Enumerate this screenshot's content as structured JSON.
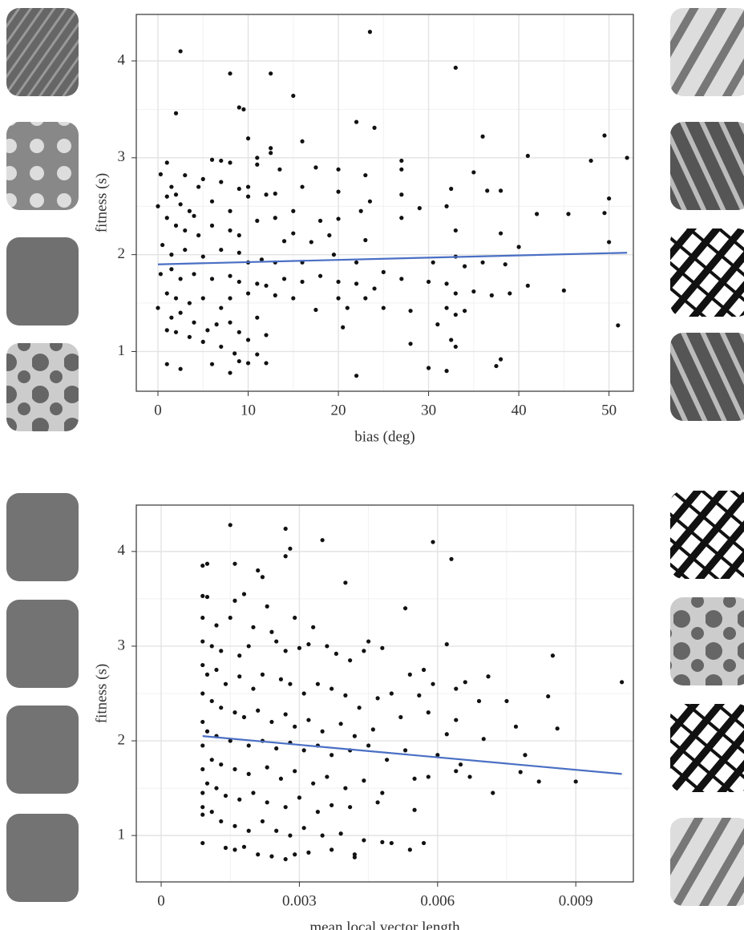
{
  "chart_data": [
    {
      "type": "scatter",
      "x_label": "bias (deg)",
      "y_label": "fitness (s)",
      "color": "#111111",
      "grid": true,
      "xlim": [
        -2.4,
        52.7
      ],
      "ylim": [
        0.59,
        4.48
      ],
      "xticks": [
        0,
        10,
        20,
        30,
        40,
        50
      ],
      "yticks": [
        1,
        2,
        3,
        4
      ],
      "trend": {
        "color": "#4a6fc4",
        "x": [
          0,
          52
        ],
        "y": [
          1.9,
          2.02
        ]
      },
      "x": [
        2.5,
        23.5,
        33,
        8,
        12.5,
        9,
        9.5,
        15,
        2,
        22,
        24,
        36,
        49.5,
        10,
        16,
        12.5,
        12.5,
        41,
        52,
        48,
        27,
        1,
        6,
        7,
        8,
        11,
        11,
        13.5,
        17.5,
        20,
        23,
        27,
        35,
        0.3,
        3,
        5,
        1.5,
        4.5,
        7,
        9,
        10,
        13,
        12,
        16,
        20,
        23.5,
        27,
        32.5,
        36.5,
        38,
        0,
        1,
        2,
        2.5,
        3.5,
        4,
        6,
        8,
        10,
        13,
        15,
        18,
        20,
        22.5,
        27,
        29,
        32,
        42,
        45.5,
        49.5,
        50,
        1,
        2,
        3,
        4.5,
        6,
        8,
        9,
        11,
        14,
        15,
        17,
        19,
        23,
        33,
        38,
        40,
        50,
        0.5,
        1.5,
        3,
        5,
        7,
        9,
        10,
        11.5,
        13,
        16,
        19.5,
        22,
        25,
        30.5,
        33,
        34,
        36,
        38.5,
        0.3,
        1.5,
        2.5,
        4,
        6,
        8,
        9,
        11,
        12,
        14,
        16,
        18,
        20,
        22,
        24,
        27,
        30,
        32,
        33,
        35,
        37,
        39,
        41,
        45,
        1,
        2,
        3.5,
        5,
        7,
        8,
        10,
        13,
        15,
        17.5,
        20,
        21,
        23,
        25,
        28,
        32,
        34,
        0,
        1.5,
        2.5,
        4,
        5.5,
        6.5,
        8,
        9,
        11,
        12,
        20.5,
        31,
        33,
        51,
        1,
        2,
        3.5,
        5,
        7,
        8.5,
        10,
        11,
        12,
        28,
        32.5,
        33,
        38,
        1,
        2.5,
        6,
        8,
        9,
        10,
        22,
        30,
        32,
        37.5
      ],
      "y": [
        4.1,
        4.3,
        3.93,
        3.87,
        3.87,
        3.52,
        3.5,
        3.64,
        3.46,
        3.37,
        3.31,
        3.22,
        3.23,
        3.2,
        3.17,
        3.1,
        3.05,
        3.02,
        3.0,
        2.97,
        2.97,
        2.95,
        2.98,
        2.97,
        2.95,
        3.0,
        2.93,
        2.88,
        2.9,
        2.88,
        2.82,
        2.88,
        2.85,
        2.83,
        2.82,
        2.78,
        2.7,
        2.7,
        2.75,
        2.68,
        2.7,
        2.63,
        2.62,
        2.7,
        2.65,
        2.55,
        2.62,
        2.68,
        2.66,
        2.66,
        2.5,
        2.6,
        2.62,
        2.52,
        2.45,
        2.4,
        2.55,
        2.45,
        2.6,
        2.38,
        2.45,
        2.35,
        2.37,
        2.45,
        2.38,
        2.48,
        2.5,
        2.42,
        2.42,
        2.43,
        2.58,
        2.38,
        2.3,
        2.25,
        2.2,
        2.3,
        2.25,
        2.2,
        2.35,
        2.14,
        2.22,
        2.13,
        2.2,
        2.15,
        2.25,
        2.22,
        2.08,
        2.13,
        2.1,
        2.0,
        2.05,
        1.98,
        2.05,
        2.02,
        1.92,
        1.95,
        1.92,
        1.92,
        2.0,
        1.92,
        1.82,
        1.92,
        1.98,
        1.88,
        1.92,
        1.9,
        1.8,
        1.85,
        1.75,
        1.8,
        1.75,
        1.78,
        1.72,
        1.7,
        1.68,
        1.75,
        1.72,
        1.78,
        1.72,
        1.7,
        1.65,
        1.75,
        1.72,
        1.7,
        1.6,
        1.62,
        1.58,
        1.6,
        1.68,
        1.63,
        1.6,
        1.55,
        1.5,
        1.55,
        1.45,
        1.55,
        1.6,
        1.58,
        1.55,
        1.43,
        1.55,
        1.45,
        1.55,
        1.45,
        1.42,
        1.45,
        1.42,
        1.45,
        1.35,
        1.4,
        1.3,
        1.22,
        1.28,
        1.3,
        1.2,
        1.35,
        1.17,
        1.25,
        1.28,
        1.38,
        1.27,
        1.22,
        1.2,
        1.15,
        1.1,
        1.05,
        0.98,
        1.12,
        0.97,
        0.88,
        1.08,
        1.12,
        1.05,
        0.92,
        0.87,
        0.82,
        0.87,
        0.78,
        0.9,
        0.88,
        0.75,
        0.83,
        0.8,
        0.85
      ]
    },
    {
      "type": "scatter",
      "x_label": "mean local vector length",
      "y_label": "fitness (s)",
      "color": "#111111",
      "grid": true,
      "xlim": [
        -0.00054,
        0.01025
      ],
      "ylim": [
        0.51,
        4.49
      ],
      "xticks": [
        0,
        0.003,
        0.006,
        0.009
      ],
      "yticks": [
        1,
        2,
        3,
        4
      ],
      "trend": {
        "color": "#4a6fc4",
        "x": [
          0.0009,
          0.01
        ],
        "y": [
          2.05,
          1.65
        ]
      },
      "x": [
        0.0015,
        0.0027,
        0.0028,
        0.0027,
        0.0035,
        0.0059,
        0.0063,
        0.0009,
        0.001,
        0.0016,
        0.0021,
        0.0022,
        0.004,
        0.0009,
        0.001,
        0.0016,
        0.0018,
        0.0023,
        0.0053,
        0.0009,
        0.0012,
        0.0015,
        0.002,
        0.0024,
        0.0029,
        0.0033,
        0.0036,
        0.0045,
        0.0048,
        0.0062,
        0.0085,
        0.01,
        0.0009,
        0.0011,
        0.0013,
        0.0017,
        0.0019,
        0.0025,
        0.0027,
        0.003,
        0.0032,
        0.0038,
        0.0041,
        0.0044,
        0.0054,
        0.0057,
        0.0066,
        0.0071,
        0.0075,
        0.0084,
        0.0009,
        0.001,
        0.0012,
        0.0014,
        0.0017,
        0.002,
        0.0022,
        0.0026,
        0.0028,
        0.0031,
        0.0034,
        0.0037,
        0.004,
        0.0043,
        0.0047,
        0.005,
        0.0056,
        0.0059,
        0.0064,
        0.0069,
        0.0077,
        0.0086,
        0.0009,
        0.0011,
        0.0013,
        0.0016,
        0.0018,
        0.0021,
        0.0024,
        0.0027,
        0.0029,
        0.0032,
        0.0035,
        0.0039,
        0.0042,
        0.0046,
        0.0052,
        0.0058,
        0.0062,
        0.0064,
        0.007,
        0.0009,
        0.001,
        0.0012,
        0.0015,
        0.0019,
        0.0022,
        0.0025,
        0.0028,
        0.0031,
        0.0034,
        0.0037,
        0.0041,
        0.0045,
        0.0049,
        0.0053,
        0.006,
        0.0065,
        0.0079,
        0.0009,
        0.0011,
        0.0013,
        0.0016,
        0.0019,
        0.0023,
        0.0026,
        0.0029,
        0.0033,
        0.0036,
        0.004,
        0.0044,
        0.0048,
        0.0055,
        0.0058,
        0.0064,
        0.0067,
        0.0072,
        0.0078,
        0.0082,
        0.009,
        0.0009,
        0.001,
        0.0012,
        0.0014,
        0.0017,
        0.002,
        0.0023,
        0.0027,
        0.003,
        0.0034,
        0.0037,
        0.0041,
        0.0047,
        0.0055,
        0.0009,
        0.0009,
        0.0009,
        0.0011,
        0.0013,
        0.0016,
        0.0019,
        0.0022,
        0.0025,
        0.0028,
        0.0031,
        0.0035,
        0.0039,
        0.0044,
        0.0009,
        0.0014,
        0.0016,
        0.0018,
        0.0021,
        0.0024,
        0.0027,
        0.0029,
        0.0032,
        0.0037,
        0.0042,
        0.0042,
        0.0048,
        0.005,
        0.0054,
        0.0057
      ],
      "y": [
        4.28,
        4.24,
        4.03,
        3.95,
        4.12,
        4.1,
        3.92,
        3.85,
        3.87,
        3.87,
        3.8,
        3.73,
        3.67,
        3.53,
        3.52,
        3.48,
        3.55,
        3.42,
        3.4,
        3.3,
        3.22,
        3.3,
        3.2,
        3.15,
        3.3,
        3.2,
        3.0,
        3.05,
        2.98,
        3.02,
        2.9,
        2.62,
        3.05,
        3.0,
        2.95,
        2.9,
        3.0,
        3.05,
        2.95,
        2.98,
        3.02,
        2.92,
        2.85,
        2.95,
        2.7,
        2.75,
        2.62,
        2.68,
        2.42,
        2.47,
        2.8,
        2.7,
        2.75,
        2.6,
        2.68,
        2.55,
        2.7,
        2.65,
        2.6,
        2.5,
        2.6,
        2.55,
        2.48,
        2.35,
        2.45,
        2.5,
        2.48,
        2.6,
        2.55,
        2.42,
        2.15,
        2.13,
        2.5,
        2.42,
        2.35,
        2.3,
        2.25,
        2.32,
        2.2,
        2.28,
        2.15,
        2.22,
        2.1,
        2.18,
        2.05,
        2.12,
        2.25,
        2.3,
        2.07,
        2.22,
        2.02,
        2.2,
        2.1,
        2.05,
        2.0,
        1.95,
        2.0,
        1.92,
        1.98,
        1.9,
        1.95,
        1.85,
        1.9,
        1.95,
        1.8,
        1.9,
        1.85,
        1.75,
        1.85,
        1.95,
        1.8,
        1.75,
        1.7,
        1.65,
        1.72,
        1.6,
        1.68,
        1.55,
        1.62,
        1.5,
        1.58,
        1.45,
        1.6,
        1.62,
        1.68,
        1.62,
        1.45,
        1.67,
        1.57,
        1.57,
        1.7,
        1.55,
        1.5,
        1.42,
        1.38,
        1.45,
        1.35,
        1.3,
        1.4,
        1.25,
        1.32,
        1.3,
        1.35,
        1.27,
        1.45,
        1.3,
        1.22,
        1.25,
        1.15,
        1.1,
        1.05,
        1.15,
        1.05,
        1.0,
        1.08,
        1.0,
        1.02,
        0.95,
        0.92,
        0.87,
        0.85,
        0.88,
        0.8,
        0.78,
        0.75,
        0.8,
        0.82,
        0.85,
        0.8,
        0.77,
        0.93,
        0.92,
        0.85,
        0.92
      ]
    }
  ]
}
